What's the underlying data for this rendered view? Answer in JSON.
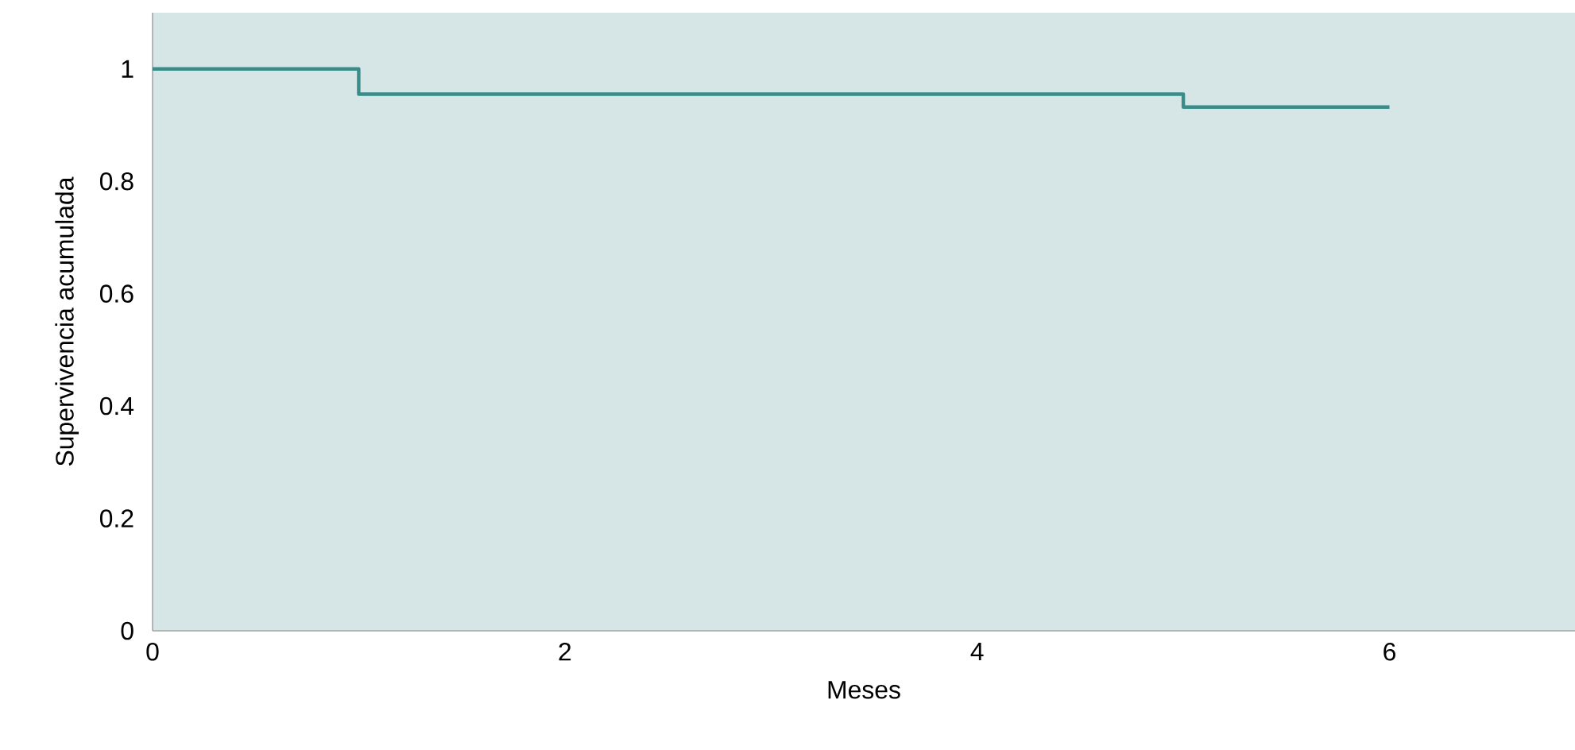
{
  "chart_data": {
    "type": "step",
    "xlabel": "Meses",
    "ylabel": "Supervivencia acumulada",
    "x": [
      0,
      1,
      1,
      5,
      5,
      6
    ],
    "series": [
      {
        "color": "#3a8c8a",
        "values": [
          1,
          1,
          0.955,
          0.955,
          0.932,
          0.932
        ]
      }
    ],
    "xlim": [
      0,
      6.9
    ],
    "ylim": [
      0,
      1.1
    ],
    "xticks": [
      0,
      2,
      4,
      6
    ],
    "yticks": [
      0,
      0.2,
      0.4,
      0.6,
      0.8,
      1
    ],
    "grid": false
  }
}
